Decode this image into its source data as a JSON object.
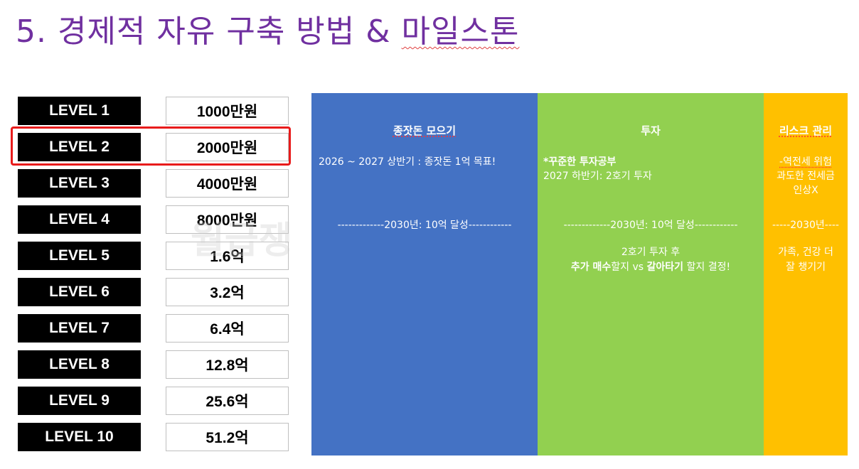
{
  "title": {
    "prefix": "5. 경제적 자유 구축 방법 & ",
    "suffix": "마일스톤"
  },
  "levels": [
    {
      "label": "LEVEL 1",
      "amount": "1000만원"
    },
    {
      "label": "LEVEL 2",
      "amount": "2000만원"
    },
    {
      "label": "LEVEL 3",
      "amount": "4000만원"
    },
    {
      "label": "LEVEL 4",
      "amount": "8000만원"
    },
    {
      "label": "LEVEL 5",
      "amount": "1.6억"
    },
    {
      "label": "LEVEL 6",
      "amount": "3.2억"
    },
    {
      "label": "LEVEL 7",
      "amount": "6.4억"
    },
    {
      "label": "LEVEL 8",
      "amount": "12.8억"
    },
    {
      "label": "LEVEL 9",
      "amount": "25.6억"
    },
    {
      "label": "LEVEL 10",
      "amount": "51.2억"
    }
  ],
  "highlighted_level": "LEVEL 2",
  "watermark": "월급쟁",
  "panels": {
    "savings": {
      "heading": "종잣돈 모으기",
      "plan": "2026 ~ 2027 상반기 : 종잣돈 1억 목표!",
      "milestone": "-------------2030년: 10억 달성------------"
    },
    "invest": {
      "heading": "투자",
      "line1": "*꾸준한 투자공부",
      "line2": "2027 하반기: 2호기 투자",
      "milestone": "-------------2030년: 10억 달성------------",
      "after1": "2호기 투자 후",
      "after2_bold1": "추가 매수",
      "after2_mid1": "할지 vs ",
      "after2_bold2": "갈아타기",
      "after2_end": " 할지 결정!"
    },
    "risk": {
      "heading": "리스크 관리",
      "line1": "-역전세 위험",
      "line2": "과도한 전세금",
      "line3": "인상X",
      "milestone": "-----2030년----",
      "line4": "가족, 건강 더",
      "line5": "잘 챙기기"
    }
  },
  "colors": {
    "title": "#7030a0",
    "panel_savings": "#4472c4",
    "panel_invest": "#92d050",
    "panel_risk": "#ffc000",
    "highlight": "#e81b1b"
  }
}
